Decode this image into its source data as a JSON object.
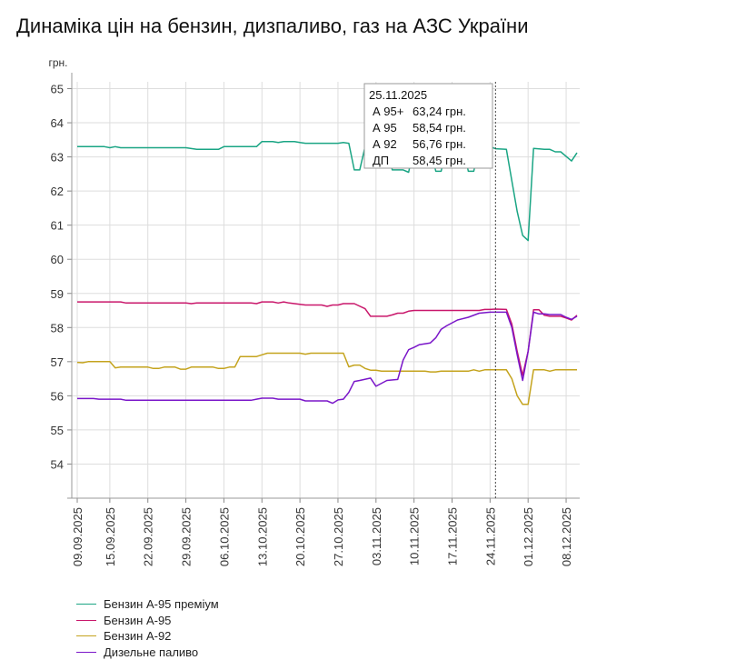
{
  "title": "Динаміка цін на бензин, дизпаливо, газ на АЗС України",
  "chart_data": {
    "type": "line",
    "y_unit": "грн.",
    "ylim": [
      53,
      65.2
    ],
    "yticks": [
      54,
      55,
      56,
      57,
      58,
      59,
      60,
      61,
      62,
      63,
      64,
      65
    ],
    "x_start": "2025-09-09",
    "x_end": "2025-12-10",
    "xticks": [
      "09.09.2025",
      "15.09.2025",
      "22.09.2025",
      "29.09.2025",
      "06.10.2025",
      "13.10.2025",
      "20.10.2025",
      "27.10.2025",
      "03.11.2025",
      "10.11.2025",
      "17.11.2025",
      "24.11.2025",
      "01.12.2025",
      "08.12.2025"
    ],
    "grid": true,
    "legend_position": "bottom-left",
    "series": [
      {
        "name": "Бензин А-95 преміум",
        "color": "#1aa584",
        "points": [
          [
            "2025-09-09",
            63.3
          ],
          [
            "2025-09-14",
            63.3
          ],
          [
            "2025-09-15",
            63.27
          ],
          [
            "2025-09-16",
            63.3
          ],
          [
            "2025-09-17",
            63.27
          ],
          [
            "2025-09-29",
            63.27
          ],
          [
            "2025-10-01",
            63.22
          ],
          [
            "2025-10-05",
            63.22
          ],
          [
            "2025-10-06",
            63.3
          ],
          [
            "2025-10-12",
            63.3
          ],
          [
            "2025-10-13",
            63.45
          ],
          [
            "2025-10-15",
            63.45
          ],
          [
            "2025-10-16",
            63.42
          ],
          [
            "2025-10-17",
            63.45
          ],
          [
            "2025-10-19",
            63.45
          ],
          [
            "2025-10-20",
            63.42
          ],
          [
            "2025-10-21",
            63.4
          ],
          [
            "2025-10-27",
            63.4
          ],
          [
            "2025-10-28",
            63.42
          ],
          [
            "2025-10-29",
            63.4
          ],
          [
            "2025-10-30",
            62.62
          ],
          [
            "2025-10-31",
            62.62
          ],
          [
            "2025-11-01",
            63.3
          ],
          [
            "2025-11-05",
            63.3
          ],
          [
            "2025-11-06",
            62.62
          ],
          [
            "2025-11-08",
            62.62
          ],
          [
            "2025-11-09",
            62.55
          ],
          [
            "2025-11-10",
            63.3
          ],
          [
            "2025-11-13",
            63.3
          ],
          [
            "2025-11-14",
            62.58
          ],
          [
            "2025-11-15",
            62.58
          ],
          [
            "2025-11-16",
            63.3
          ],
          [
            "2025-11-19",
            63.3
          ],
          [
            "2025-11-20",
            62.58
          ],
          [
            "2025-11-21",
            62.58
          ],
          [
            "2025-11-22",
            63.3
          ],
          [
            "2025-11-24",
            63.3
          ],
          [
            "2025-11-25",
            63.24
          ],
          [
            "2025-11-27",
            63.22
          ],
          [
            "2025-11-28",
            62.3
          ],
          [
            "2025-11-29",
            61.4
          ],
          [
            "2025-11-30",
            60.7
          ],
          [
            "2025-12-01",
            60.55
          ],
          [
            "2025-12-02",
            63.25
          ],
          [
            "2025-12-04",
            63.22
          ],
          [
            "2025-12-05",
            63.22
          ],
          [
            "2025-12-06",
            63.15
          ],
          [
            "2025-12-07",
            63.15
          ],
          [
            "2025-12-09",
            62.88
          ],
          [
            "2025-12-10",
            63.12
          ]
        ]
      },
      {
        "name": "Бензин А-95",
        "color": "#c9176b",
        "points": [
          [
            "2025-09-09",
            58.75
          ],
          [
            "2025-09-17",
            58.75
          ],
          [
            "2025-09-18",
            58.72
          ],
          [
            "2025-09-29",
            58.72
          ],
          [
            "2025-09-30",
            58.7
          ],
          [
            "2025-10-01",
            58.72
          ],
          [
            "2025-10-11",
            58.72
          ],
          [
            "2025-10-12",
            58.7
          ],
          [
            "2025-10-13",
            58.75
          ],
          [
            "2025-10-15",
            58.75
          ],
          [
            "2025-10-16",
            58.72
          ],
          [
            "2025-10-17",
            58.75
          ],
          [
            "2025-10-18",
            58.72
          ],
          [
            "2025-10-20",
            58.68
          ],
          [
            "2025-10-21",
            58.66
          ],
          [
            "2025-10-24",
            58.66
          ],
          [
            "2025-10-25",
            58.62
          ],
          [
            "2025-10-26",
            58.66
          ],
          [
            "2025-10-27",
            58.66
          ],
          [
            "2025-10-28",
            58.7
          ],
          [
            "2025-10-30",
            58.7
          ],
          [
            "2025-11-01",
            58.55
          ],
          [
            "2025-11-02",
            58.33
          ],
          [
            "2025-11-05",
            58.33
          ],
          [
            "2025-11-06",
            58.37
          ],
          [
            "2025-11-07",
            58.42
          ],
          [
            "2025-11-08",
            58.42
          ],
          [
            "2025-11-09",
            58.48
          ],
          [
            "2025-11-10",
            58.5
          ],
          [
            "2025-11-22",
            58.5
          ],
          [
            "2025-11-23",
            58.53
          ],
          [
            "2025-11-24",
            58.53
          ],
          [
            "2025-11-25",
            58.54
          ],
          [
            "2025-11-27",
            58.53
          ],
          [
            "2025-11-28",
            58.1
          ],
          [
            "2025-11-29",
            57.3
          ],
          [
            "2025-11-30",
            56.6
          ],
          [
            "2025-12-01",
            57.3
          ],
          [
            "2025-12-02",
            58.52
          ],
          [
            "2025-12-03",
            58.52
          ],
          [
            "2025-12-04",
            58.36
          ],
          [
            "2025-12-05",
            58.33
          ],
          [
            "2025-12-07",
            58.33
          ],
          [
            "2025-12-08",
            58.28
          ],
          [
            "2025-12-09",
            58.22
          ],
          [
            "2025-12-10",
            58.36
          ]
        ]
      },
      {
        "name": "Бензин А-92",
        "color": "#c4a31d",
        "points": [
          [
            "2025-09-09",
            56.98
          ],
          [
            "2025-09-10",
            56.97
          ],
          [
            "2025-09-11",
            57.0
          ],
          [
            "2025-09-15",
            57.0
          ],
          [
            "2025-09-16",
            56.82
          ],
          [
            "2025-09-17",
            56.84
          ],
          [
            "2025-09-22",
            56.84
          ],
          [
            "2025-09-23",
            56.8
          ],
          [
            "2025-09-24",
            56.8
          ],
          [
            "2025-09-25",
            56.84
          ],
          [
            "2025-09-27",
            56.84
          ],
          [
            "2025-09-28",
            56.78
          ],
          [
            "2025-09-29",
            56.78
          ],
          [
            "2025-09-30",
            56.84
          ],
          [
            "2025-10-04",
            56.84
          ],
          [
            "2025-10-05",
            56.8
          ],
          [
            "2025-10-06",
            56.8
          ],
          [
            "2025-10-07",
            56.84
          ],
          [
            "2025-10-08",
            56.84
          ],
          [
            "2025-10-09",
            57.15
          ],
          [
            "2025-10-12",
            57.15
          ],
          [
            "2025-10-13",
            57.2
          ],
          [
            "2025-10-14",
            57.25
          ],
          [
            "2025-10-20",
            57.25
          ],
          [
            "2025-10-21",
            57.22
          ],
          [
            "2025-10-22",
            57.25
          ],
          [
            "2025-10-28",
            57.25
          ],
          [
            "2025-10-29",
            56.85
          ],
          [
            "2025-10-30",
            56.9
          ],
          [
            "2025-10-31",
            56.9
          ],
          [
            "2025-11-01",
            56.8
          ],
          [
            "2025-11-02",
            56.75
          ],
          [
            "2025-11-03",
            56.75
          ],
          [
            "2025-11-04",
            56.72
          ],
          [
            "2025-11-12",
            56.72
          ],
          [
            "2025-11-13",
            56.7
          ],
          [
            "2025-11-14",
            56.7
          ],
          [
            "2025-11-15",
            56.72
          ],
          [
            "2025-11-20",
            56.72
          ],
          [
            "2025-11-21",
            56.76
          ],
          [
            "2025-11-22",
            56.72
          ],
          [
            "2025-11-23",
            56.76
          ],
          [
            "2025-11-27",
            56.76
          ],
          [
            "2025-11-28",
            56.5
          ],
          [
            "2025-11-29",
            56.0
          ],
          [
            "2025-11-30",
            55.75
          ],
          [
            "2025-12-01",
            55.75
          ],
          [
            "2025-12-02",
            56.76
          ],
          [
            "2025-12-04",
            56.76
          ],
          [
            "2025-12-05",
            56.72
          ],
          [
            "2025-12-06",
            56.76
          ],
          [
            "2025-12-10",
            56.76
          ]
        ]
      },
      {
        "name": "Дизельне паливо",
        "color": "#7a16c9",
        "points": [
          [
            "2025-09-09",
            55.92
          ],
          [
            "2025-09-12",
            55.92
          ],
          [
            "2025-09-13",
            55.9
          ],
          [
            "2025-09-17",
            55.9
          ],
          [
            "2025-09-18",
            55.87
          ],
          [
            "2025-10-11",
            55.87
          ],
          [
            "2025-10-12",
            55.9
          ],
          [
            "2025-10-13",
            55.93
          ],
          [
            "2025-10-15",
            55.93
          ],
          [
            "2025-10-16",
            55.9
          ],
          [
            "2025-10-20",
            55.9
          ],
          [
            "2025-10-21",
            55.85
          ],
          [
            "2025-10-25",
            55.85
          ],
          [
            "2025-10-26",
            55.78
          ],
          [
            "2025-10-27",
            55.88
          ],
          [
            "2025-10-28",
            55.9
          ],
          [
            "2025-10-29",
            56.1
          ],
          [
            "2025-10-30",
            56.42
          ],
          [
            "2025-10-31",
            56.45
          ],
          [
            "2025-11-02",
            56.52
          ],
          [
            "2025-11-03",
            56.28
          ],
          [
            "2025-11-05",
            56.45
          ],
          [
            "2025-11-07",
            56.48
          ],
          [
            "2025-11-08",
            57.05
          ],
          [
            "2025-11-09",
            57.35
          ],
          [
            "2025-11-10",
            57.42
          ],
          [
            "2025-11-11",
            57.5
          ],
          [
            "2025-11-13",
            57.55
          ],
          [
            "2025-11-14",
            57.7
          ],
          [
            "2025-11-15",
            57.95
          ],
          [
            "2025-11-16",
            58.05
          ],
          [
            "2025-11-18",
            58.22
          ],
          [
            "2025-11-20",
            58.3
          ],
          [
            "2025-11-22",
            58.42
          ],
          [
            "2025-11-24",
            58.45
          ],
          [
            "2025-11-25",
            58.45
          ],
          [
            "2025-11-27",
            58.45
          ],
          [
            "2025-11-28",
            58.0
          ],
          [
            "2025-11-29",
            57.2
          ],
          [
            "2025-11-30",
            56.45
          ],
          [
            "2025-12-01",
            57.3
          ],
          [
            "2025-12-02",
            58.45
          ],
          [
            "2025-12-03",
            58.4
          ],
          [
            "2025-12-04",
            58.4
          ],
          [
            "2025-12-05",
            58.38
          ],
          [
            "2025-12-07",
            58.38
          ],
          [
            "2025-12-08",
            58.3
          ],
          [
            "2025-12-09",
            58.24
          ],
          [
            "2025-12-10",
            58.33
          ]
        ]
      }
    ],
    "crosshair_date": "2025-11-25",
    "tooltip": {
      "date": "25.11.2025",
      "rows": [
        {
          "label": "А 95+",
          "value": "63,24 грн."
        },
        {
          "label": "А 95",
          "value": "58,54 грн."
        },
        {
          "label": "А 92",
          "value": "56,76 грн."
        },
        {
          "label": "ДП",
          "value": "58,45 грн."
        }
      ]
    }
  }
}
